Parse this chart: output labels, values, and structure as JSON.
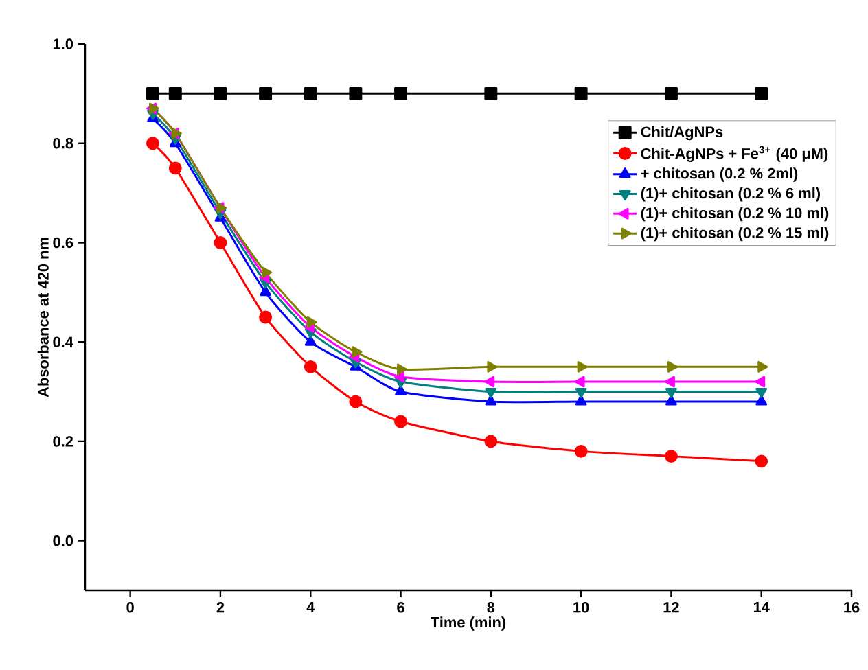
{
  "chart_data": {
    "type": "line",
    "xlabel": "Time (min)",
    "ylabel": "Absorbance at 420 nm",
    "x": [
      0.5,
      1,
      2,
      3,
      4,
      5,
      6,
      8,
      10,
      12,
      14
    ],
    "series": [
      {
        "name": "Chit/AgNPs",
        "color": "#000000",
        "marker": "square",
        "values": [
          0.9,
          0.9,
          0.9,
          0.9,
          0.9,
          0.9,
          0.9,
          0.9,
          0.9,
          0.9,
          0.9
        ]
      },
      {
        "name": "Chit-AgNPs + Fe$^{3+}$ (40 μM)",
        "color": "#ff0000",
        "marker": "circle",
        "values": [
          0.8,
          0.75,
          0.6,
          0.45,
          0.35,
          0.28,
          0.24,
          0.2,
          0.18,
          0.17,
          0.16
        ]
      },
      {
        "name": "+ chitosan (0.2 % 2ml)",
        "color": "#0000ff",
        "marker": "triangle",
        "values": [
          0.85,
          0.8,
          0.65,
          0.5,
          0.4,
          0.35,
          0.3,
          0.28,
          0.28,
          0.28,
          0.28
        ]
      },
      {
        "name": "(1)+ chitosan (0.2 % 6 ml)",
        "color": "#008080",
        "marker": "triangle-down",
        "values": [
          0.86,
          0.81,
          0.66,
          0.52,
          0.42,
          0.36,
          0.32,
          0.3,
          0.3,
          0.3,
          0.3
        ]
      },
      {
        "name": "(1)+ chitosan (0.2 % 10 ml)",
        "color": "#ff00ff",
        "marker": "triangle-left",
        "values": [
          0.87,
          0.82,
          0.67,
          0.53,
          0.43,
          0.37,
          0.33,
          0.32,
          0.32,
          0.32,
          0.32
        ]
      },
      {
        "name": "(1)+ chitosan (0.2 % 15 ml)",
        "color": "#808000",
        "marker": "triangle-right",
        "values": [
          0.87,
          0.82,
          0.67,
          0.54,
          0.44,
          0.38,
          0.345,
          0.35,
          0.35,
          0.35,
          0.35
        ]
      }
    ],
    "xlim": [
      -1,
      16
    ],
    "ylim": [
      -0.1,
      1.0
    ],
    "xticks": [
      0,
      2,
      4,
      6,
      8,
      10,
      12,
      14,
      16
    ],
    "yticks": [
      {
        "value": 0,
        "label": "0.0"
      },
      {
        "value": 0.2,
        "label": "0.2"
      },
      {
        "value": 0.4,
        "label": "0.4"
      },
      {
        "value": 0.6,
        "label": "0.6"
      },
      {
        "value": 0.8,
        "label": "0.8"
      },
      {
        "value": 1.0,
        "label": "1.0"
      }
    ],
    "grid": false,
    "legend": "top right",
    "line_style": "solid"
  }
}
